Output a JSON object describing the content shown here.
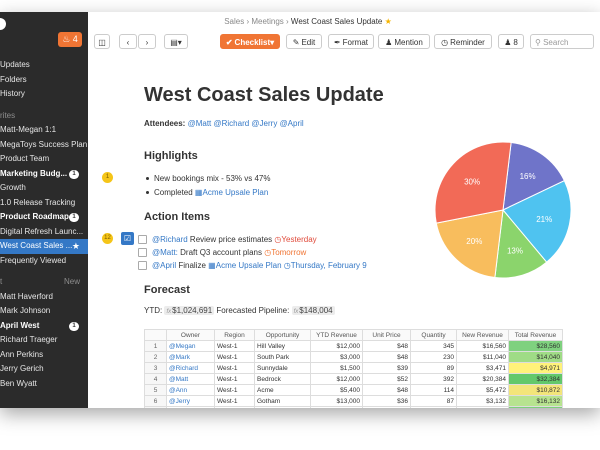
{
  "sidebar": {
    "notification_count": "4",
    "items": [
      {
        "label": "Updates",
        "type": "item"
      },
      {
        "label": "Folders",
        "type": "item"
      },
      {
        "label": "History",
        "type": "item"
      },
      {
        "label": "rites",
        "type": "section"
      },
      {
        "label": "Matt-Megan 1:1",
        "type": "item"
      },
      {
        "label": "MegaToys Success Plan",
        "type": "item"
      },
      {
        "label": "Product Team",
        "type": "item"
      },
      {
        "label": "Marketing Budg...",
        "type": "bold",
        "count": "1"
      },
      {
        "label": "Growth",
        "type": "item"
      },
      {
        "label": "1.0 Release Tracking",
        "type": "item"
      },
      {
        "label": "Product Roadmap",
        "type": "bold",
        "count": "1"
      },
      {
        "label": "Digital Refresh Launc...",
        "type": "item"
      },
      {
        "label": "West Coast Sales ...",
        "type": "selected"
      },
      {
        "label": "Frequently Viewed",
        "type": "item"
      },
      {
        "label": "t",
        "type": "section",
        "extra": "New"
      },
      {
        "label": "Matt Haverford",
        "type": "item"
      },
      {
        "label": "Mark Johnson",
        "type": "item"
      },
      {
        "label": "April West",
        "type": "bold",
        "count": "1"
      },
      {
        "label": "Richard Traeger",
        "type": "item"
      },
      {
        "label": "Ann Perkins",
        "type": "item"
      },
      {
        "label": "Jerry Gerich",
        "type": "item"
      },
      {
        "label": "Ben Wyatt",
        "type": "item"
      }
    ]
  },
  "breadcrumb": {
    "part1": "Sales",
    "part2": "Meetings",
    "current": "West Coast Sales Update"
  },
  "toolbar": {
    "checklist": "Checklist",
    "edit": "Edit",
    "format": "Format",
    "mention": "Mention",
    "reminder": "Reminder",
    "members": "8",
    "search_placeholder": "Search"
  },
  "doc": {
    "title": "West Coast Sales Update",
    "attendees_label": "Attendees:",
    "attendees": [
      "@Matt",
      "@Richard",
      "@Jerry",
      "@April"
    ],
    "highlights_heading": "Highlights",
    "highlights_marker": "1",
    "highlight1": "New bookings mix - 53% vs 47%",
    "highlight2_prefix": "Completed",
    "highlight2_link": "Acme Upsale Plan",
    "action_heading": "Action Items",
    "action_marker": "12",
    "action1_who": "@Richard",
    "action1_text": "Review price estimates",
    "action1_due": "Yesterday",
    "action2_who": "@Matt:",
    "action2_text": "Draft Q3 account plans",
    "action2_due": "Tomorrow",
    "action3_who": "@April",
    "action3_text": "Finalize",
    "action3_link": "Acme Upsale Plan",
    "action3_due": "Thursday, February 9",
    "forecast_heading": "Forecast",
    "ytd_label": "YTD:",
    "ytd_value": "$1,024,691",
    "pipeline_label": "Forecasted Pipeline:",
    "pipeline_value": "$148,004"
  },
  "table": {
    "headers": [
      "",
      "Owner",
      "Region",
      "Opportunity",
      "YTD Revenue",
      "Unit Price",
      "Quantity",
      "New Revenue",
      "Total Revenue"
    ],
    "rows": [
      [
        "1",
        "@Megan",
        "West-1",
        "Hill Valley",
        "$12,000",
        "$48",
        "345",
        "$16,560",
        "$28,560"
      ],
      [
        "2",
        "@Mark",
        "West-1",
        "South Park",
        "$3,000",
        "$48",
        "230",
        "$11,040",
        "$14,040"
      ],
      [
        "3",
        "@Richard",
        "West-1",
        "Sunnydale",
        "$1,500",
        "$39",
        "89",
        "$3,471",
        "$4,971"
      ],
      [
        "4",
        "@Matt",
        "West-1",
        "Bedrock",
        "$12,000",
        "$52",
        "392",
        "$20,384",
        "$32,384"
      ],
      [
        "5",
        "@Ann",
        "West-1",
        "Acme",
        "$5,400",
        "$48",
        "114",
        "$5,472",
        "$10,872"
      ],
      [
        "6",
        "@Jerry",
        "West-1",
        "Gotham",
        "$13,000",
        "$36",
        "87",
        "$3,132",
        "$16,132"
      ],
      [
        "7",
        "@April",
        "West-1",
        "Pawnee",
        "$12,575",
        "$65",
        "438",
        "$28,470",
        "$41,045"
      ]
    ],
    "total_colors": [
      "#7fd17f",
      "#9fdc86",
      "#fff27a",
      "#63c86b",
      "#f3e57a",
      "#b7e38f",
      "#7cd07b"
    ]
  },
  "chart_data": {
    "type": "pie",
    "slices": [
      {
        "label": "16%",
        "value": 16,
        "color": "#6f74c9"
      },
      {
        "label": "21%",
        "value": 21,
        "color": "#4fc3f0"
      },
      {
        "label": "13%",
        "value": 13,
        "color": "#8bd46c"
      },
      {
        "label": "20%",
        "value": 20,
        "color": "#f8bd5d"
      },
      {
        "label": "30%",
        "value": 30,
        "color": "#f26a57"
      }
    ]
  }
}
